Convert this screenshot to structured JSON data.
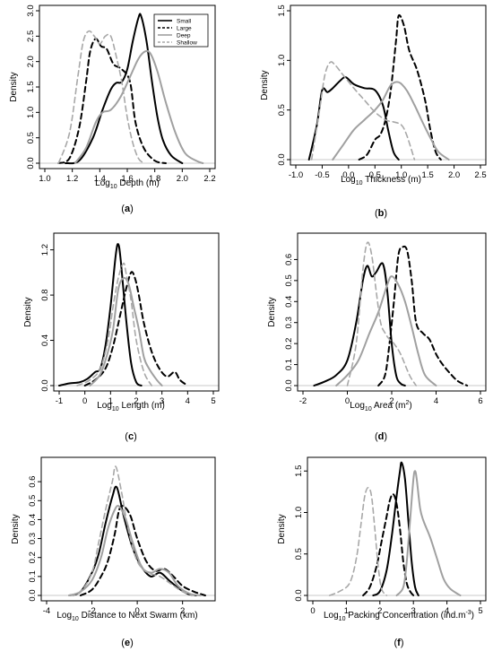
{
  "figure": {
    "legend": {
      "entries": [
        {
          "label": "Small",
          "color": "#000000",
          "dash": "solid"
        },
        {
          "label": "Large",
          "color": "#000000",
          "dash": "dashed"
        },
        {
          "label": "Deep",
          "color": "#a0a0a0",
          "dash": "solid"
        },
        {
          "label": "Shallow",
          "color": "#a0a0a0",
          "dash": "dashed"
        }
      ]
    }
  },
  "chart_data": [
    {
      "panel": "(a)",
      "type": "line",
      "xlabel_prefix": "Log",
      "xlabel_sub": "10",
      "xlabel_rest": "  Depth (m)",
      "xlabel_sup": "",
      "xlabel_tail": "",
      "ylabel": "Density",
      "xlim": [
        1.0,
        2.2
      ],
      "ylim": [
        0,
        3.0
      ],
      "xticks": [
        1.0,
        1.2,
        1.4,
        1.6,
        1.8,
        2.0,
        2.2
      ],
      "xtick_labels": [
        "1.0",
        "1.2",
        "1.4",
        "1.6",
        "1.8",
        "2.0",
        "2.2"
      ],
      "yticks": [
        0,
        0.5,
        1.0,
        1.5,
        2.0,
        2.5,
        3.0
      ],
      "ytick_labels": [
        "0.0",
        "0.5",
        "1.0",
        "1.5",
        "2.0",
        "2.5",
        "3.0"
      ],
      "series": [
        {
          "name": "Small",
          "x": [
            1.15,
            1.25,
            1.35,
            1.42,
            1.48,
            1.52,
            1.56,
            1.6,
            1.64,
            1.68,
            1.7,
            1.74,
            1.78,
            1.82,
            1.86,
            1.92,
            2.0
          ],
          "y": [
            0,
            0.05,
            0.5,
            1.05,
            1.45,
            1.58,
            1.6,
            1.85,
            2.4,
            2.85,
            2.9,
            2.4,
            1.6,
            0.9,
            0.45,
            0.15,
            0
          ]
        },
        {
          "name": "Large",
          "x": [
            1.1,
            1.18,
            1.25,
            1.3,
            1.33,
            1.37,
            1.41,
            1.45,
            1.5,
            1.56,
            1.62,
            1.66,
            1.72,
            1.8,
            1.88
          ],
          "y": [
            0,
            0.1,
            0.7,
            1.6,
            2.2,
            2.45,
            2.3,
            2.25,
            1.95,
            1.85,
            1.6,
            0.8,
            0.3,
            0.05,
            0
          ]
        },
        {
          "name": "Deep",
          "x": [
            1.22,
            1.3,
            1.37,
            1.42,
            1.48,
            1.55,
            1.62,
            1.68,
            1.73,
            1.77,
            1.82,
            1.88,
            1.95,
            2.02,
            2.1,
            2.15
          ],
          "y": [
            0,
            0.3,
            0.8,
            1.0,
            1.05,
            1.3,
            1.7,
            2.05,
            2.2,
            2.15,
            1.8,
            1.2,
            0.6,
            0.2,
            0.05,
            0
          ]
        },
        {
          "name": "Shallow",
          "x": [
            1.1,
            1.18,
            1.24,
            1.28,
            1.32,
            1.36,
            1.4,
            1.44,
            1.48,
            1.52,
            1.56,
            1.6,
            1.64,
            1.68,
            1.72
          ],
          "y": [
            0,
            0.6,
            1.7,
            2.4,
            2.6,
            2.5,
            2.35,
            2.5,
            2.5,
            2.1,
            1.6,
            0.9,
            0.4,
            0.1,
            0
          ]
        }
      ]
    },
    {
      "panel": "(b)",
      "type": "line",
      "xlabel_prefix": "Log",
      "xlabel_sub": "10",
      "xlabel_rest": "  Thickness (m)",
      "xlabel_sup": "",
      "xlabel_tail": "",
      "ylabel": "Density",
      "xlim": [
        -1.0,
        2.5
      ],
      "ylim": [
        0,
        1.5
      ],
      "xticks": [
        -1.0,
        -0.5,
        0.0,
        0.5,
        1.0,
        1.5,
        2.0,
        2.5
      ],
      "xtick_labels": [
        "-1.0",
        "-0.5",
        "0.0",
        "0.5",
        "1.0",
        "1.5",
        "2.0",
        "2.5"
      ],
      "yticks": [
        0,
        0.5,
        1.0,
        1.5
      ],
      "ytick_labels": [
        "0.0",
        "0.5",
        "1.0",
        "1.5"
      ],
      "series": [
        {
          "name": "Small",
          "x": [
            -0.75,
            -0.6,
            -0.5,
            -0.4,
            -0.3,
            -0.15,
            -0.05,
            0.1,
            0.3,
            0.5,
            0.65,
            0.75,
            0.85,
            0.95
          ],
          "y": [
            0,
            0.35,
            0.7,
            0.68,
            0.72,
            0.8,
            0.83,
            0.76,
            0.72,
            0.7,
            0.55,
            0.3,
            0.08,
            0
          ]
        },
        {
          "name": "Large",
          "x": [
            0.2,
            0.35,
            0.5,
            0.6,
            0.7,
            0.8,
            0.9,
            0.95,
            1.05,
            1.15,
            1.3,
            1.45,
            1.55,
            1.65,
            1.75
          ],
          "y": [
            0,
            0.05,
            0.2,
            0.25,
            0.4,
            0.7,
            1.2,
            1.45,
            1.35,
            1.1,
            0.9,
            0.6,
            0.3,
            0.08,
            0
          ]
        },
        {
          "name": "Deep",
          "x": [
            -0.3,
            -0.1,
            0.1,
            0.3,
            0.5,
            0.65,
            0.8,
            0.95,
            1.1,
            1.25,
            1.4,
            1.55,
            1.7,
            1.9
          ],
          "y": [
            0,
            0.15,
            0.3,
            0.4,
            0.5,
            0.6,
            0.75,
            0.78,
            0.7,
            0.55,
            0.38,
            0.22,
            0.08,
            0
          ]
        },
        {
          "name": "Shallow",
          "x": [
            -0.7,
            -0.55,
            -0.45,
            -0.35,
            -0.25,
            -0.1,
            0.1,
            0.3,
            0.5,
            0.7,
            0.85,
            1.0,
            1.1,
            1.25
          ],
          "y": [
            0,
            0.5,
            0.85,
            0.98,
            0.95,
            0.85,
            0.72,
            0.6,
            0.48,
            0.4,
            0.38,
            0.35,
            0.25,
            0
          ]
        }
      ]
    },
    {
      "panel": "(c)",
      "type": "line",
      "xlabel_prefix": "Log",
      "xlabel_sub": "10",
      "xlabel_rest": "  Length (m)",
      "xlabel_sup": "",
      "xlabel_tail": "",
      "ylabel": "Density",
      "xlim": [
        -1,
        5
      ],
      "ylim": [
        0,
        1.3
      ],
      "xticks": [
        -1,
        0,
        1,
        2,
        3,
        4,
        5
      ],
      "xtick_labels": [
        "-1",
        "0",
        "1",
        "2",
        "3",
        "4",
        "5"
      ],
      "yticks": [
        0,
        0.4,
        0.8,
        1.2
      ],
      "ytick_labels": [
        "0.0",
        "0.4",
        "0.8",
        "1.2"
      ],
      "series": [
        {
          "name": "Small",
          "x": [
            -1.0,
            -0.6,
            -0.2,
            0.1,
            0.4,
            0.6,
            0.8,
            1.0,
            1.2,
            1.3,
            1.4,
            1.6,
            1.8,
            2.0,
            2.2
          ],
          "y": [
            0,
            0.02,
            0.03,
            0.06,
            0.12,
            0.15,
            0.35,
            0.7,
            1.15,
            1.25,
            1.1,
            0.6,
            0.2,
            0.03,
            0
          ]
        },
        {
          "name": "Large",
          "x": [
            0.0,
            0.4,
            0.8,
            1.1,
            1.4,
            1.6,
            1.8,
            1.95,
            2.1,
            2.3,
            2.6,
            2.9,
            3.2,
            3.5,
            3.7,
            4.0
          ],
          "y": [
            0,
            0.05,
            0.15,
            0.35,
            0.65,
            0.85,
            1.0,
            0.95,
            0.8,
            0.55,
            0.3,
            0.15,
            0.08,
            0.12,
            0.05,
            0
          ]
        },
        {
          "name": "Deep",
          "x": [
            0.2,
            0.6,
            0.9,
            1.1,
            1.3,
            1.5,
            1.7,
            1.9,
            2.1,
            2.3,
            2.5,
            2.8,
            3.0
          ],
          "y": [
            0,
            0.1,
            0.3,
            0.5,
            0.85,
            0.95,
            0.9,
            0.7,
            0.5,
            0.25,
            0.15,
            0.05,
            0
          ]
        },
        {
          "name": "Shallow",
          "x": [
            -0.3,
            0.2,
            0.6,
            0.9,
            1.1,
            1.3,
            1.5,
            1.6,
            1.8,
            2.0,
            2.3,
            2.6
          ],
          "y": [
            0,
            0.05,
            0.15,
            0.4,
            0.7,
            0.95,
            1.08,
            1.0,
            0.75,
            0.4,
            0.12,
            0
          ]
        }
      ]
    },
    {
      "panel": "(d)",
      "type": "line",
      "xlabel_prefix": "Log",
      "xlabel_sub": "10",
      "xlabel_rest": " Area (m",
      "xlabel_sup": "2",
      "xlabel_tail": ")",
      "ylabel": "Density",
      "xlim": [
        -2,
        6
      ],
      "ylim": [
        0,
        0.7
      ],
      "xticks": [
        -2,
        0,
        2,
        4,
        6
      ],
      "xtick_labels": [
        "-2",
        "0",
        "2",
        "4",
        "6"
      ],
      "yticks": [
        0,
        0.1,
        0.2,
        0.3,
        0.4,
        0.5,
        0.6
      ],
      "ytick_labels": [
        "0.0",
        "0.1",
        "0.2",
        "0.3",
        "0.4",
        "0.5",
        "0.6"
      ],
      "series": [
        {
          "name": "Small",
          "x": [
            -1.5,
            -1.0,
            -0.5,
            0.0,
            0.4,
            0.7,
            0.9,
            1.1,
            1.3,
            1.6,
            1.8,
            2.0,
            2.2,
            2.4,
            2.6
          ],
          "y": [
            0,
            0.02,
            0.05,
            0.12,
            0.3,
            0.5,
            0.57,
            0.52,
            0.54,
            0.58,
            0.45,
            0.2,
            0.05,
            0.01,
            0
          ]
        },
        {
          "name": "Large",
          "x": [
            1.4,
            1.7,
            1.9,
            2.1,
            2.3,
            2.5,
            2.7,
            2.9,
            3.1,
            3.4,
            3.7,
            4.0,
            4.3,
            4.7,
            5.0,
            5.4
          ],
          "y": [
            0,
            0.05,
            0.2,
            0.4,
            0.62,
            0.66,
            0.64,
            0.5,
            0.3,
            0.25,
            0.22,
            0.15,
            0.1,
            0.05,
            0.02,
            0
          ]
        },
        {
          "name": "Deep",
          "x": [
            -0.5,
            0.0,
            0.5,
            1.0,
            1.4,
            1.8,
            2.0,
            2.3,
            2.6,
            2.9,
            3.2,
            3.5,
            4.0
          ],
          "y": [
            0,
            0.05,
            0.12,
            0.25,
            0.35,
            0.48,
            0.52,
            0.48,
            0.4,
            0.28,
            0.15,
            0.05,
            0
          ]
        },
        {
          "name": "Shallow",
          "x": [
            0.0,
            0.4,
            0.7,
            0.9,
            1.1,
            1.3,
            1.5,
            1.7,
            1.9,
            2.1,
            2.4,
            2.8,
            3.1
          ],
          "y": [
            0,
            0.2,
            0.55,
            0.68,
            0.62,
            0.45,
            0.3,
            0.25,
            0.22,
            0.2,
            0.15,
            0.05,
            0
          ]
        }
      ]
    },
    {
      "panel": "(e)",
      "type": "line",
      "xlabel_prefix": "Log",
      "xlabel_sub": "10",
      "xlabel_rest": "  Distance to Next Swarm (km)",
      "xlabel_sup": "",
      "xlabel_tail": "",
      "ylabel": "Density",
      "xlim": [
        -4,
        3.2
      ],
      "ylim": [
        0,
        0.7
      ],
      "xticks": [
        -4,
        -2,
        0,
        2
      ],
      "xtick_labels": [
        "-4",
        "-2",
        "0",
        "2"
      ],
      "yticks": [
        0,
        0.1,
        0.2,
        0.3,
        0.4,
        0.5,
        0.6
      ],
      "ytick_labels": [
        "0.0",
        "0.1",
        "0.2",
        "0.3",
        "0.4",
        "0.5",
        "0.6"
      ],
      "series": [
        {
          "name": "Small",
          "x": [
            -3.0,
            -2.5,
            -2.0,
            -1.7,
            -1.4,
            -1.1,
            -0.9,
            -0.6,
            -0.2,
            0.2,
            0.6,
            1.0,
            1.4,
            1.8,
            2.2,
            2.6
          ],
          "y": [
            0,
            0.02,
            0.12,
            0.22,
            0.38,
            0.52,
            0.57,
            0.42,
            0.25,
            0.15,
            0.1,
            0.12,
            0.08,
            0.04,
            0.01,
            0
          ]
        },
        {
          "name": "Large",
          "x": [
            -2.5,
            -2.0,
            -1.6,
            -1.3,
            -1.0,
            -0.8,
            -0.6,
            -0.3,
            0.0,
            0.4,
            0.8,
            1.2,
            1.6,
            2.0,
            2.5,
            3.0
          ],
          "y": [
            0,
            0.03,
            0.1,
            0.18,
            0.32,
            0.45,
            0.47,
            0.42,
            0.3,
            0.18,
            0.13,
            0.14,
            0.1,
            0.05,
            0.02,
            0
          ]
        },
        {
          "name": "Deep",
          "x": [
            -3.0,
            -2.5,
            -2.0,
            -1.6,
            -1.3,
            -1.0,
            -0.8,
            -0.5,
            -0.2,
            0.2,
            0.6,
            1.0,
            1.4,
            1.8,
            2.3,
            2.8
          ],
          "y": [
            0,
            0.02,
            0.08,
            0.2,
            0.35,
            0.45,
            0.47,
            0.4,
            0.28,
            0.15,
            0.12,
            0.14,
            0.12,
            0.05,
            0.01,
            0
          ]
        },
        {
          "name": "Shallow",
          "x": [
            -3.0,
            -2.5,
            -2.0,
            -1.7,
            -1.4,
            -1.1,
            -0.95,
            -0.7,
            -0.4,
            0.0,
            0.5,
            1.0,
            1.5,
            2.0,
            2.5
          ],
          "y": [
            0,
            0.02,
            0.12,
            0.28,
            0.45,
            0.6,
            0.68,
            0.55,
            0.35,
            0.18,
            0.12,
            0.1,
            0.06,
            0.02,
            0
          ]
        }
      ]
    },
    {
      "panel": "(f)",
      "type": "line",
      "xlabel_prefix": "Log",
      "xlabel_sub": "10",
      "xlabel_rest": "  Packing Concentration (ind.m",
      "xlabel_sup": "-3",
      "xlabel_tail": ")",
      "ylabel": "Density",
      "xlim": [
        0,
        5
      ],
      "ylim": [
        0,
        1.6
      ],
      "xticks": [
        0,
        1,
        2,
        3,
        4,
        5
      ],
      "xtick_labels": [
        "0",
        "1",
        "2",
        "3",
        "4",
        "5"
      ],
      "yticks": [
        0,
        0.5,
        1.0,
        1.5
      ],
      "ytick_labels": [
        "0.0",
        "0.5",
        "1.0",
        "1.5"
      ],
      "series": [
        {
          "name": "Small",
          "x": [
            1.8,
            2.0,
            2.2,
            2.35,
            2.5,
            2.6,
            2.65,
            2.75,
            2.85,
            2.95,
            3.05,
            3.15
          ],
          "y": [
            0,
            0.05,
            0.3,
            0.7,
            1.2,
            1.5,
            1.6,
            1.4,
            0.9,
            0.4,
            0.1,
            0
          ]
        },
        {
          "name": "Large",
          "x": [
            1.5,
            1.7,
            1.9,
            2.05,
            2.2,
            2.3,
            2.4,
            2.5,
            2.6,
            2.7,
            2.8,
            2.9,
            3.0
          ],
          "y": [
            0,
            0.1,
            0.35,
            0.65,
            0.95,
            1.15,
            1.22,
            1.1,
            0.8,
            0.4,
            0.15,
            0.05,
            0
          ]
        },
        {
          "name": "Deep",
          "x": [
            2.5,
            2.7,
            2.8,
            2.9,
            3.0,
            3.05,
            3.1,
            3.2,
            3.3,
            3.5,
            3.7,
            3.9,
            4.1,
            4.4
          ],
          "y": [
            0,
            0.1,
            0.4,
            0.9,
            1.4,
            1.5,
            1.4,
            1.05,
            0.9,
            0.7,
            0.45,
            0.2,
            0.08,
            0
          ]
        },
        {
          "name": "Shallow",
          "x": [
            0.5,
            0.8,
            1.1,
            1.3,
            1.45,
            1.55,
            1.65,
            1.75,
            1.85,
            1.95,
            2.05,
            2.2
          ],
          "y": [
            0,
            0.05,
            0.15,
            0.45,
            0.9,
            1.2,
            1.3,
            1.2,
            0.8,
            0.35,
            0.08,
            0
          ]
        }
      ]
    }
  ]
}
